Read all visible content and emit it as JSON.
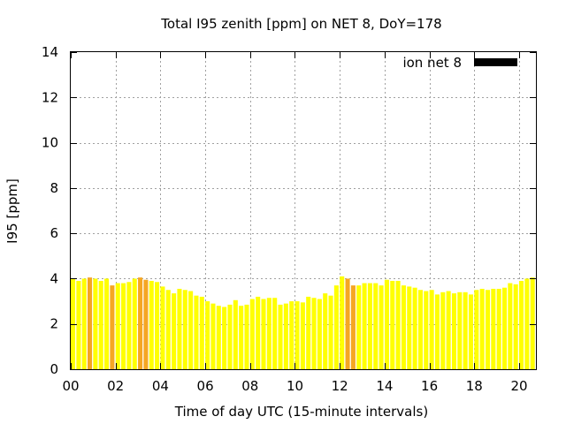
{
  "chart_data": {
    "type": "bar",
    "title": "Total I95 zenith [ppm] on NET 8, DoY=178",
    "xlabel": "Time of day UTC (15-minute intervals)",
    "ylabel": "I95 [ppm]",
    "xlim_hours": [
      0,
      20.75
    ],
    "ylim": [
      0,
      14
    ],
    "grid": true,
    "interval_hours": 0.25,
    "x_ticks": [
      "00",
      "02",
      "04",
      "06",
      "08",
      "10",
      "12",
      "14",
      "16",
      "18",
      "20"
    ],
    "y_ticks": [
      "0",
      "2",
      "4",
      "6",
      "8",
      "10",
      "12",
      "14"
    ],
    "legend": {
      "label": "ion net 8",
      "color": "#000000",
      "position": "top-right"
    },
    "colors": {
      "normal": "#ffff00",
      "highlight": "#f5a623"
    },
    "series": [
      {
        "values": [
          4.0,
          3.9,
          4.0,
          4.05,
          4.0,
          3.9,
          4.0,
          3.7,
          3.8,
          3.8,
          3.85,
          4.0,
          4.05,
          3.95,
          3.9,
          3.85,
          3.65,
          3.5,
          3.35,
          3.55,
          3.5,
          3.45,
          3.25,
          3.2,
          3.0,
          2.9,
          2.8,
          2.75,
          2.85,
          3.05,
          2.8,
          2.85,
          3.1,
          3.2,
          3.1,
          3.15,
          3.15,
          2.85,
          2.9,
          3.0,
          3.0,
          2.95,
          3.2,
          3.15,
          3.1,
          3.35,
          3.25,
          3.7,
          4.1,
          4.0,
          3.7,
          3.7,
          3.8,
          3.8,
          3.8,
          3.7,
          3.95,
          3.9,
          3.9,
          3.7,
          3.65,
          3.6,
          3.5,
          3.45,
          3.5,
          3.3,
          3.4,
          3.45,
          3.35,
          3.4,
          3.4,
          3.3,
          3.5,
          3.55,
          3.5,
          3.55,
          3.55,
          3.6,
          3.8,
          3.75,
          3.9,
          4.0,
          4.05
        ],
        "highlighted_indices": [
          3,
          7,
          12,
          13,
          49,
          50
        ]
      }
    ]
  }
}
